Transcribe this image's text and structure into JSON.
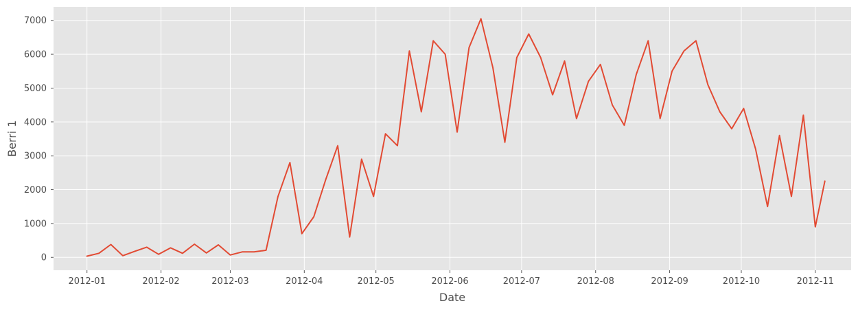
{
  "chart_data": {
    "type": "line",
    "title": "",
    "xlabel": "Date",
    "ylabel": "Berri 1",
    "xlim": [
      "2011-12-18",
      "2012-11-16"
    ],
    "ylim": [
      -380,
      7400
    ],
    "grid": true,
    "colors": {
      "background": "#e5e5e5",
      "grid": "#ffffff",
      "line": "#e24a33",
      "text": "#4d4d4d"
    },
    "x_ticks": [
      {
        "value": "2012-01-01",
        "label": "2012-01"
      },
      {
        "value": "2012-02-01",
        "label": "2012-02"
      },
      {
        "value": "2012-03-01",
        "label": "2012-03"
      },
      {
        "value": "2012-04-01",
        "label": "2012-04"
      },
      {
        "value": "2012-05-01",
        "label": "2012-05"
      },
      {
        "value": "2012-06-01",
        "label": "2012-06"
      },
      {
        "value": "2012-07-01",
        "label": "2012-07"
      },
      {
        "value": "2012-08-01",
        "label": "2012-08"
      },
      {
        "value": "2012-09-01",
        "label": "2012-09"
      },
      {
        "value": "2012-10-01",
        "label": "2012-10"
      },
      {
        "value": "2012-11-01",
        "label": "2012-11"
      }
    ],
    "y_ticks": [
      0,
      1000,
      2000,
      3000,
      4000,
      5000,
      6000,
      7000
    ],
    "x": [
      "2012-01-01",
      "2012-01-06",
      "2012-01-11",
      "2012-01-16",
      "2012-01-21",
      "2012-01-26",
      "2012-01-31",
      "2012-02-05",
      "2012-02-10",
      "2012-02-15",
      "2012-02-20",
      "2012-02-25",
      "2012-03-01",
      "2012-03-06",
      "2012-03-11",
      "2012-03-16",
      "2012-03-21",
      "2012-03-26",
      "2012-03-31",
      "2012-04-05",
      "2012-04-10",
      "2012-04-15",
      "2012-04-20",
      "2012-04-25",
      "2012-04-30",
      "2012-05-05",
      "2012-05-10",
      "2012-05-15",
      "2012-05-20",
      "2012-05-25",
      "2012-05-30",
      "2012-06-04",
      "2012-06-09",
      "2012-06-14",
      "2012-06-19",
      "2012-06-24",
      "2012-06-29",
      "2012-07-04",
      "2012-07-09",
      "2012-07-14",
      "2012-07-19",
      "2012-07-24",
      "2012-07-29",
      "2012-08-03",
      "2012-08-08",
      "2012-08-13",
      "2012-08-18",
      "2012-08-23",
      "2012-08-28",
      "2012-09-02",
      "2012-09-07",
      "2012-09-12",
      "2012-09-17",
      "2012-09-22",
      "2012-09-27",
      "2012-10-02",
      "2012-10-07",
      "2012-10-12",
      "2012-10-17",
      "2012-10-22",
      "2012-10-27",
      "2012-11-01",
      "2012-11-05"
    ],
    "series": [
      {
        "values": [
          35,
          120,
          380,
          50,
          180,
          300,
          90,
          280,
          120,
          390,
          130,
          370,
          70,
          160,
          160,
          210,
          1800,
          2800,
          700,
          1200,
          2300,
          3300,
          600,
          2900,
          1800,
          3650,
          3300,
          6100,
          4300,
          6400,
          6000,
          3700,
          6200,
          7050,
          5600,
          3400,
          5900,
          6600,
          5900,
          4800,
          5800,
          4100,
          5200,
          5700,
          4500,
          3900,
          5400,
          6400,
          4100,
          5500,
          6100,
          6400,
          5100,
          4300,
          3800,
          4400,
          3200,
          1500,
          3600,
          1800,
          4200,
          900,
          2250
        ]
      }
    ]
  }
}
